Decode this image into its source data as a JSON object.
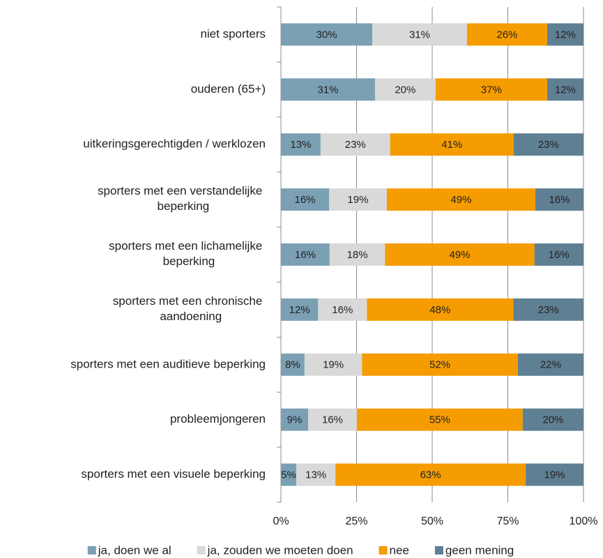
{
  "chart_data": {
    "type": "stacked_barh",
    "categories": [
      "niet sporters",
      "ouderen (65+)",
      "uitkeringsgerechtigden / werklozen",
      "sporters met een verstandelijke beperking",
      "sporters met een lichamelijke beperking",
      "sporters met een chronische aandoening",
      "sporters met een auditieve beperking",
      "probleemjongeren",
      "sporters met een visuele beperking"
    ],
    "series": [
      {
        "name": "ja, doen we al",
        "color": "#7ba0b4",
        "values": [
          30.2,
          31.1,
          13.1,
          15.9,
          16.1,
          12.3,
          7.8,
          9.0,
          5.1
        ],
        "value_labels": [
          "30%",
          "31%",
          "13%",
          "16%",
          "16%",
          "12%",
          "8%",
          "9%",
          "5%"
        ]
      },
      {
        "name": "ja, zouden we moeten doen",
        "color": "#d9d9d9",
        "values": [
          31.3,
          20.0,
          23.0,
          19.1,
          18.3,
          16.1,
          19.0,
          16.1,
          12.9
        ],
        "value_labels": [
          "31%",
          "20%",
          "23%",
          "19%",
          "18%",
          "16%",
          "19%",
          "16%",
          "13%"
        ]
      },
      {
        "name": "nee",
        "color": "#f59c00",
        "values": [
          26.5,
          36.9,
          40.8,
          49.1,
          49.4,
          48.4,
          51.5,
          54.8,
          62.9
        ],
        "value_labels": [
          "26%",
          "37%",
          "41%",
          "49%",
          "49%",
          "48%",
          "52%",
          "55%",
          "63%"
        ]
      },
      {
        "name": "geen mening",
        "color": "#5f7f93",
        "values": [
          12.0,
          12.0,
          23.1,
          15.9,
          16.2,
          23.2,
          21.7,
          20.1,
          19.1
        ],
        "value_labels": [
          "12%",
          "12%",
          "23%",
          "16%",
          "16%",
          "23%",
          "22%",
          "20%",
          "19%"
        ]
      }
    ],
    "xlim": [
      0,
      100
    ],
    "xticks": [
      {
        "value": 0,
        "label": "0%"
      },
      {
        "value": 25,
        "label": "25%"
      },
      {
        "value": 50,
        "label": "50%"
      },
      {
        "value": 75,
        "label": "75%"
      },
      {
        "value": 100,
        "label": "100%"
      }
    ],
    "grid": true
  }
}
